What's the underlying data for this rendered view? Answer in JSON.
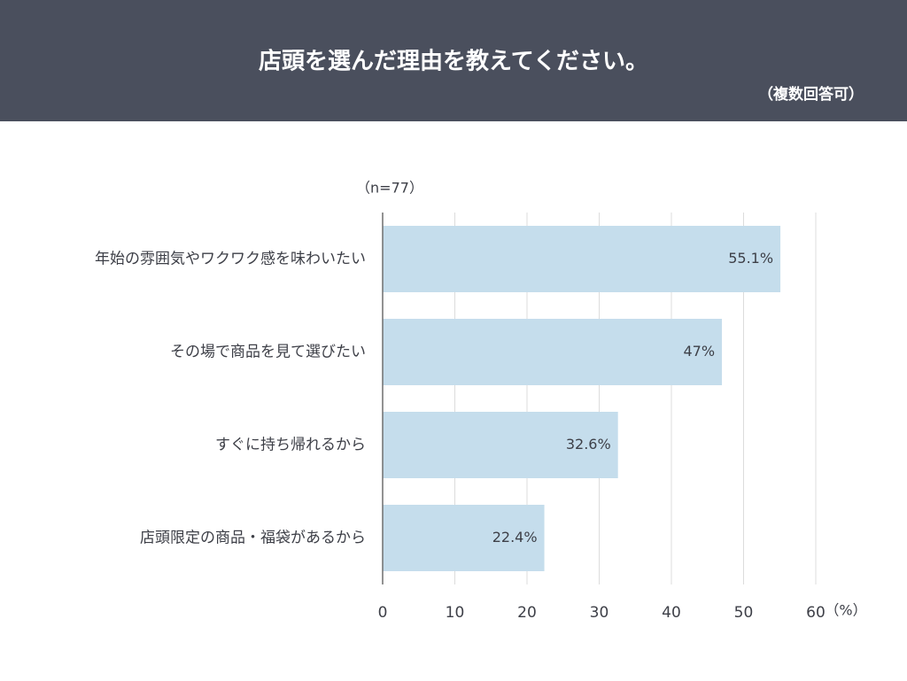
{
  "chart_data": {
    "type": "bar",
    "orientation": "horizontal",
    "title": "店頭を選んだ理由を教えてください。",
    "subtitle": "（複数回答可）",
    "note": "（n=77）",
    "xlabel": "（%）",
    "categories": [
      "年始の雰囲気やワクワク感を味わいたい",
      "その場で商品を見て選びたい",
      "すぐに持ち帰れるから",
      "店頭限定の商品・福袋があるから"
    ],
    "values": [
      55.1,
      47,
      32.6,
      22.4
    ],
    "value_labels": [
      "55.1%",
      "47%",
      "32.6%",
      "22.4%"
    ],
    "color": "#c5ddec",
    "xlim": [
      0,
      60
    ],
    "xticks": [
      0,
      10,
      20,
      30,
      40,
      50,
      60
    ],
    "grid": true
  }
}
